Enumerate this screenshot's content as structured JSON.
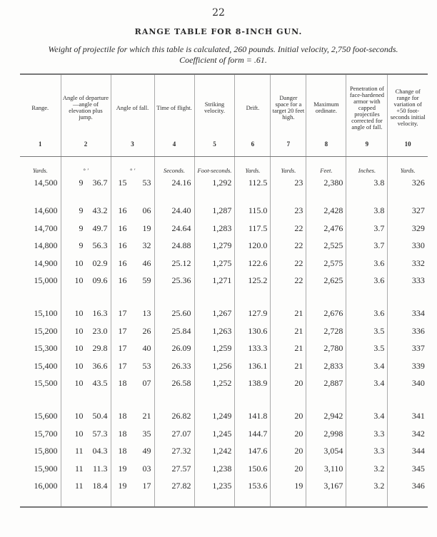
{
  "page_number": "22",
  "title": "RANGE TABLE FOR 8-INCH GUN.",
  "subtitle": "Weight of projectile for which this table is calculated, 260 pounds.  Initial velocity, 2,750 foot-seconds.  Coefficient of form = .61.",
  "columns": [
    {
      "header": "Range.",
      "number": "1",
      "unit": "Yards."
    },
    {
      "header": "Angle of departure—angle of elevation plus jump.",
      "number": "2",
      "unit": "°          ′"
    },
    {
      "header": "Angle of fall.",
      "number": "3",
      "unit": "°      ′"
    },
    {
      "header": "Time of flight.",
      "number": "4",
      "unit": "Seconds."
    },
    {
      "header": "Striking velocity.",
      "number": "5",
      "unit": "Foot-seconds."
    },
    {
      "header": "Drift.",
      "number": "6",
      "unit": "Yards."
    },
    {
      "header": "Danger space for a target 20 feet high.",
      "number": "7",
      "unit": "Yards."
    },
    {
      "header": "Maximum ordinate.",
      "number": "8",
      "unit": "Feet."
    },
    {
      "header": "Penetration of face-hardened armor with capped projectiles corrected for angle of fall.",
      "number": "9",
      "unit": "Inches."
    },
    {
      "header": "Change of range for variation of +50 foot-seconds initial velocity.",
      "number": "10",
      "unit": "Yards."
    }
  ],
  "rows": [
    [
      "14,500",
      "9",
      "36.7",
      "15",
      "53",
      "24.16",
      "1,292",
      "112.5",
      "23",
      "2,380",
      "3.8",
      "326"
    ],
    [
      "14,600",
      "9",
      "43.2",
      "16",
      "06",
      "24.40",
      "1,287",
      "115.0",
      "23",
      "2,428",
      "3.8",
      "327"
    ],
    [
      "14,700",
      "9",
      "49.7",
      "16",
      "19",
      "24.64",
      "1,283",
      "117.5",
      "22",
      "2,476",
      "3.7",
      "329"
    ],
    [
      "14,800",
      "9",
      "56.3",
      "16",
      "32",
      "24.88",
      "1,279",
      "120.0",
      "22",
      "2,525",
      "3.7",
      "330"
    ],
    [
      "14,900",
      "10",
      "02.9",
      "16",
      "46",
      "25.12",
      "1,275",
      "122.6",
      "22",
      "2,575",
      "3.6",
      "332"
    ],
    [
      "15,000",
      "10",
      "09.6",
      "16",
      "59",
      "25.36",
      "1,271",
      "125.2",
      "22",
      "2,625",
      "3.6",
      "333"
    ],
    [
      "15,100",
      "10",
      "16.3",
      "17",
      "13",
      "25.60",
      "1,267",
      "127.9",
      "21",
      "2,676",
      "3.6",
      "334"
    ],
    [
      "15,200",
      "10",
      "23.0",
      "17",
      "26",
      "25.84",
      "1,263",
      "130.6",
      "21",
      "2,728",
      "3.5",
      "336"
    ],
    [
      "15,300",
      "10",
      "29.8",
      "17",
      "40",
      "26.09",
      "1,259",
      "133.3",
      "21",
      "2,780",
      "3.5",
      "337"
    ],
    [
      "15,400",
      "10",
      "36.6",
      "17",
      "53",
      "26.33",
      "1,256",
      "136.1",
      "21",
      "2,833",
      "3.4",
      "339"
    ],
    [
      "15,500",
      "10",
      "43.5",
      "18",
      "07",
      "26.58",
      "1,252",
      "138.9",
      "20",
      "2,887",
      "3.4",
      "340"
    ],
    [
      "15,600",
      "10",
      "50.4",
      "18",
      "21",
      "26.82",
      "1,249",
      "141.8",
      "20",
      "2,942",
      "3.4",
      "341"
    ],
    [
      "15,700",
      "10",
      "57.3",
      "18",
      "35",
      "27.07",
      "1,245",
      "144.7",
      "20",
      "2,998",
      "3.3",
      "342"
    ],
    [
      "15,800",
      "11",
      "04.3",
      "18",
      "49",
      "27.32",
      "1,242",
      "147.6",
      "20",
      "3,054",
      "3.3",
      "344"
    ],
    [
      "15,900",
      "11",
      "11.3",
      "19",
      "03",
      "27.57",
      "1,238",
      "150.6",
      "20",
      "3,110",
      "3.2",
      "345"
    ],
    [
      "16,000",
      "11",
      "18.4",
      "19",
      "17",
      "27.82",
      "1,235",
      "153.6",
      "19",
      "3,167",
      "3.2",
      "346"
    ]
  ]
}
